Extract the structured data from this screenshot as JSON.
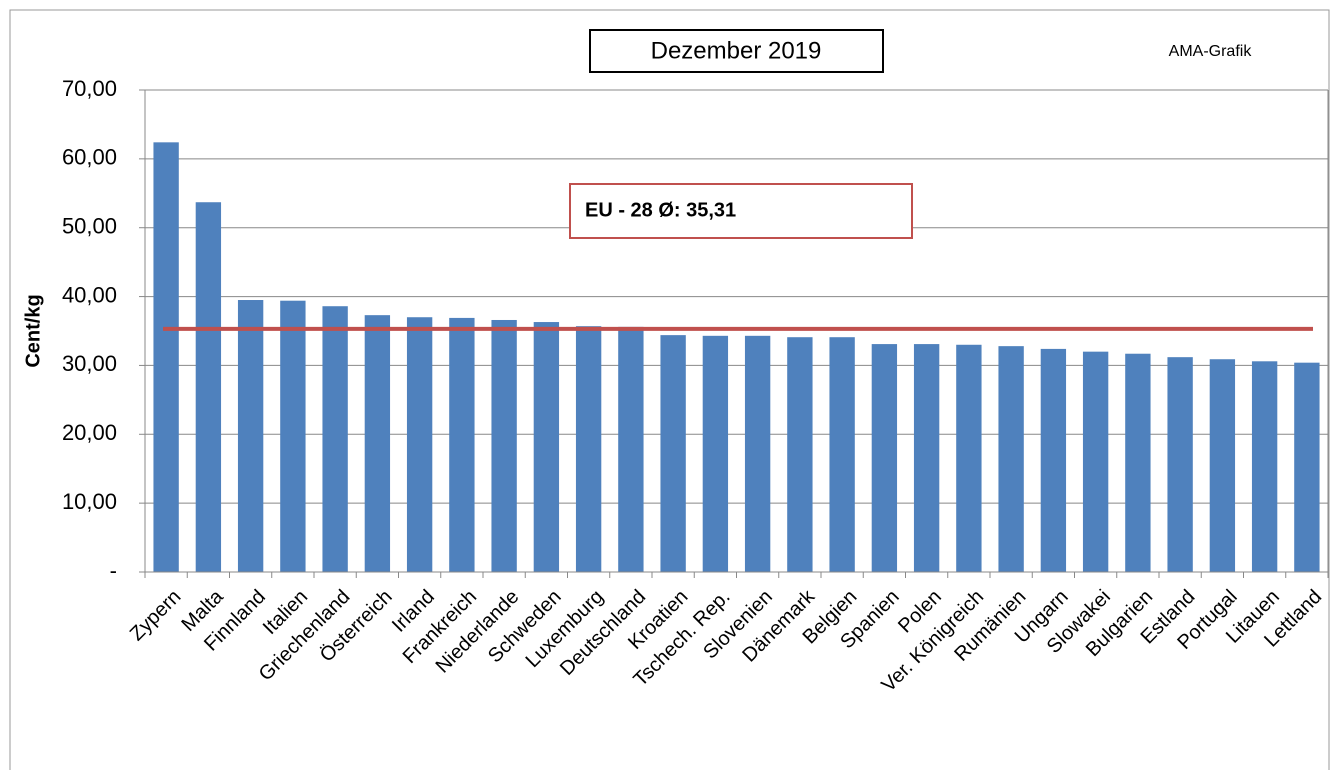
{
  "chart_data": {
    "type": "bar",
    "subtitle": "Dezember 2019",
    "source": "AMA-Grafik",
    "y_label": "Cent/kg",
    "categories": [
      "Zypern",
      "Malta",
      "Finnland",
      "Italien",
      "Griechenland",
      "Österreich",
      "Irland",
      "Frankreich",
      "Niederlande",
      "Schweden",
      "Luxemburg",
      "Deutschland",
      "Kroatien",
      "Tschech. Rep.",
      "Slovenien",
      "Dänemark",
      "Belgien",
      "Spanien",
      "Polen",
      "Ver. Königreich",
      "Rumänien",
      "Ungarn",
      "Slowakei",
      "Bulgarien",
      "Estland",
      "Portugal",
      "Litauen",
      "Lettland"
    ],
    "values": [
      62.4,
      53.7,
      39.5,
      39.4,
      38.6,
      37.3,
      37.0,
      36.9,
      36.6,
      36.3,
      35.7,
      35.6,
      34.4,
      34.3,
      34.3,
      34.1,
      34.1,
      33.1,
      33.1,
      33.0,
      32.8,
      32.4,
      32.0,
      31.7,
      31.2,
      30.9,
      30.6,
      30.4
    ],
    "color": "#4f81bd",
    "ylim": [
      0,
      70
    ],
    "yticks": [
      {
        "value": 0,
        "label": "-"
      },
      {
        "value": 10,
        "label": "10,00"
      },
      {
        "value": 20,
        "label": "20,00"
      },
      {
        "value": 30,
        "label": "30,00"
      },
      {
        "value": 40,
        "label": "40,00"
      },
      {
        "value": 50,
        "label": "50,00"
      },
      {
        "value": 60,
        "label": "60,00"
      },
      {
        "value": 70,
        "label": "70,00"
      }
    ],
    "grid": true,
    "reference_line": {
      "value": 35.31,
      "label": "EU - 28 Ø: 35,31",
      "color": "#c0504d"
    }
  }
}
